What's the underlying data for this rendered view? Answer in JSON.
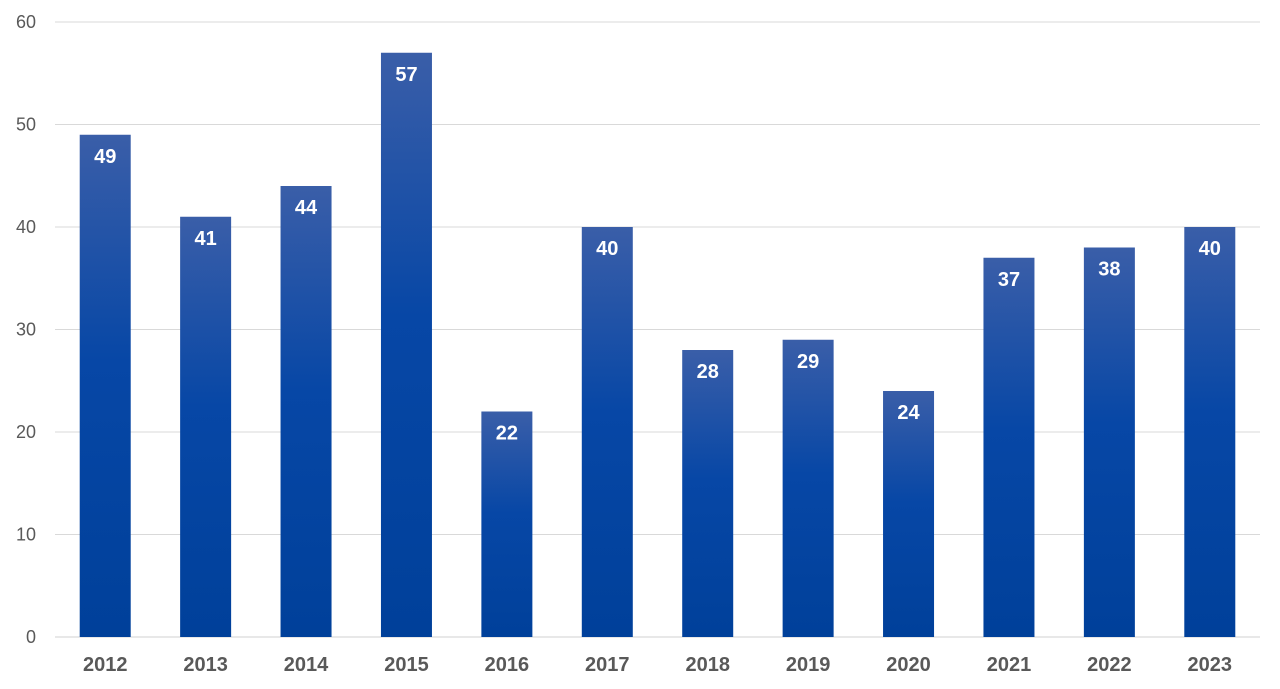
{
  "chart_data": {
    "type": "bar",
    "categories": [
      "2012",
      "2013",
      "2014",
      "2015",
      "2016",
      "2017",
      "2018",
      "2019",
      "2020",
      "2021",
      "2022",
      "2023"
    ],
    "values": [
      49,
      41,
      44,
      57,
      22,
      40,
      28,
      29,
      24,
      37,
      38,
      40
    ],
    "ylim": [
      0,
      60
    ],
    "yticks": [
      0,
      10,
      20,
      30,
      40,
      50,
      60
    ],
    "grid": true,
    "data_labels": true,
    "legend": "none",
    "bar_color_top": "#3a5ea8",
    "bar_color_mid": "#0747a6",
    "bar_color_bottom": "#00409a"
  }
}
